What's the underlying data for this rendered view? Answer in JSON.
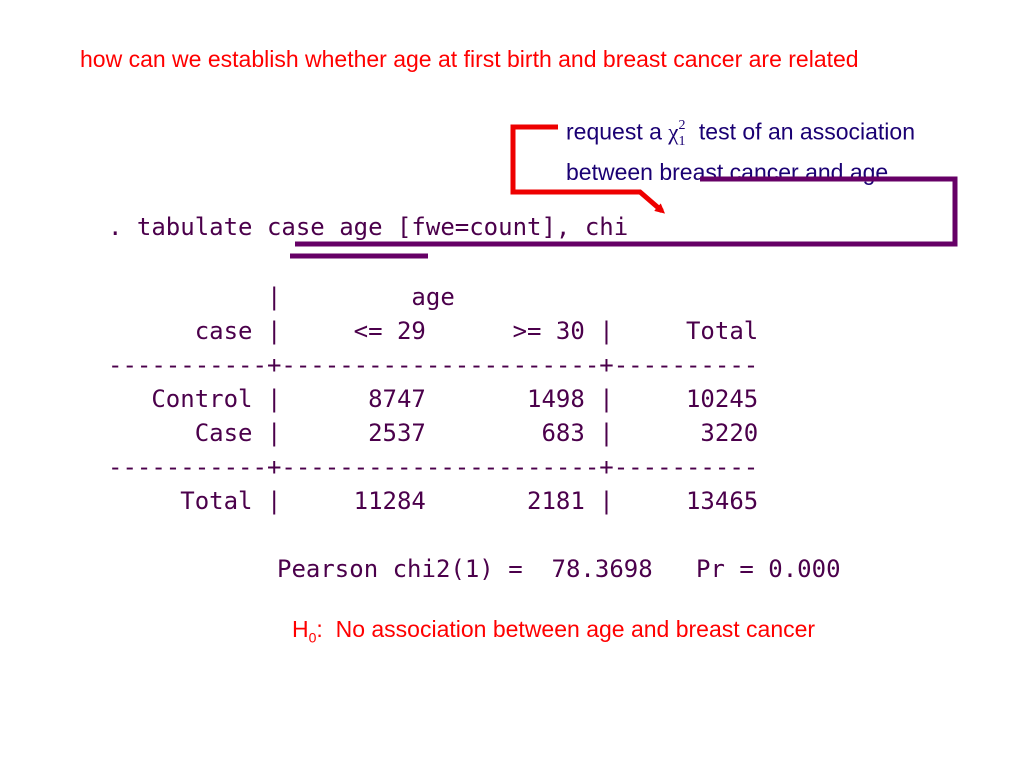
{
  "question": "how can we establish whether age at first birth and breast cancer are related",
  "note": {
    "prefix": "request a ",
    "chi_symbol": "χ",
    "chi_sup": "2",
    "chi_sub": "1",
    "suffix": " test of an association",
    "line2": "between breast cancer and age"
  },
  "command": ". tabulate case age [fwe=count], chi",
  "table": {
    "header_line1": "           |         age",
    "header_line2": "      case |     <= 29      >= 30 |     Total",
    "separator": "-----------+----------------------+----------",
    "rows": [
      "   Control |      8747       1498 |     10245",
      "      Case |      2537        683 |      3220"
    ],
    "total_row": "     Total |     11284       2181 |     13465",
    "cells": {
      "columns": [
        "<= 29",
        ">= 30",
        "Total"
      ],
      "Control": [
        8747,
        1498,
        10245
      ],
      "Case": [
        2537,
        683,
        3220
      ],
      "Total": [
        11284,
        2181,
        13465
      ]
    }
  },
  "pearson": "Pearson chi2(1) =  78.3698   Pr = 0.000",
  "h0": {
    "letter": "H",
    "sub": "0",
    "text": ":  No association between age and breast cancer"
  },
  "colors": {
    "red": "#ff0000",
    "purple_text": "#4b004b",
    "navy_text": "#1a0073",
    "bracket_purple": "#660066",
    "arrow_red": "#ee0000"
  }
}
